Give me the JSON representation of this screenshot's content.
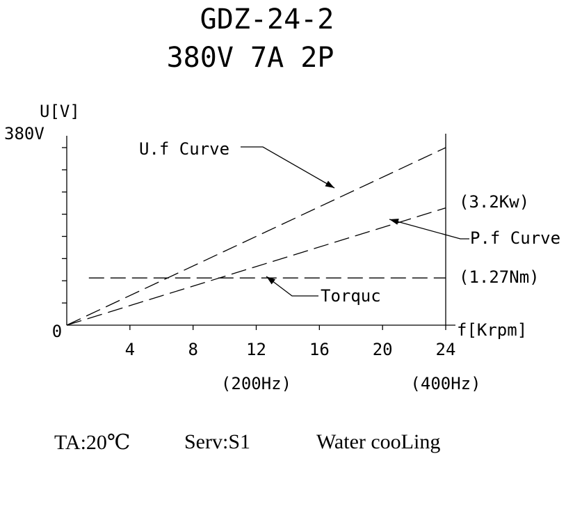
{
  "title": {
    "line1": "GDZ-24-2",
    "line2": "380V 7A  2P"
  },
  "colors": {
    "ink": "#000000",
    "background": "#ffffff"
  },
  "chart_data": {
    "type": "line",
    "y_axis": {
      "label": "U[V]",
      "max_label": "380V",
      "range": [
        0,
        380
      ],
      "minor_ticks": 8
    },
    "x_axis": {
      "label": "f[Krpm]",
      "range": [
        0,
        24
      ],
      "origin_label": "0",
      "ticks": [
        {
          "value": 4,
          "label": "4"
        },
        {
          "value": 8,
          "label": "8"
        },
        {
          "value": 12,
          "label": "12"
        },
        {
          "value": 16,
          "label": "16"
        },
        {
          "value": 20,
          "label": "20"
        },
        {
          "value": 24,
          "label": "24"
        }
      ],
      "secondary_labels": [
        {
          "value": 12,
          "label": "(200Hz)"
        },
        {
          "value": 24,
          "label": "(400Hz)"
        }
      ]
    },
    "grid": false,
    "line_style": "dashed",
    "series": [
      {
        "name": "U.f Curve",
        "x": [
          0,
          24
        ],
        "y": [
          0,
          380
        ]
      },
      {
        "name": "P.f Curve",
        "x": [
          0,
          24
        ],
        "y": [
          0,
          251
        ],
        "end_label": "(3.2Kw)"
      },
      {
        "name": "Torquc",
        "x": [
          1.4,
          24
        ],
        "y": [
          101,
          101
        ],
        "end_label": "(1.27Nm)"
      }
    ]
  },
  "footer": {
    "ambient": "TA:20℃",
    "service": "Serv:S1",
    "cooling": "Water cooLing"
  }
}
